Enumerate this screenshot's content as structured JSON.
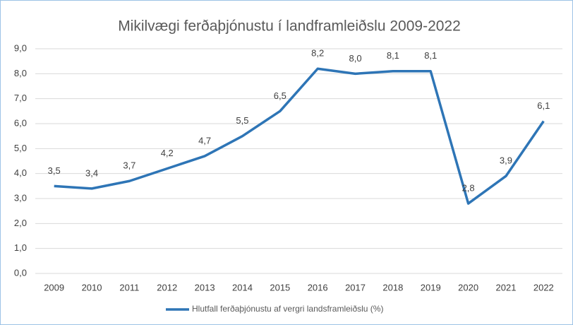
{
  "chart_data": {
    "type": "line",
    "title": "Mikilvægi ferðaþjónustu í landframleiðslu 2009-2022",
    "categories": [
      "2009",
      "2010",
      "2011",
      "2012",
      "2013",
      "2014",
      "2015",
      "2016",
      "2017",
      "2018",
      "2019",
      "2020",
      "2021",
      "2022"
    ],
    "series": [
      {
        "name": "Hlutfall ferðaþjónustu af vergri landsframleiðslu (%)",
        "color": "#2e75b6",
        "values": [
          3.5,
          3.4,
          3.7,
          4.2,
          4.7,
          5.5,
          6.5,
          8.2,
          8.0,
          8.1,
          8.1,
          2.8,
          3.9,
          6.1
        ],
        "value_labels": [
          "3,5",
          "3,4",
          "3,7",
          "4,2",
          "4,7",
          "5,5",
          "6,5",
          "8,2",
          "8,0",
          "8,1",
          "8,1",
          "2,8",
          "3,9",
          "6,1"
        ]
      }
    ],
    "ylim": [
      0,
      9
    ],
    "yticks": [
      {
        "value": 0,
        "label": "0,0"
      },
      {
        "value": 1,
        "label": "1,0"
      },
      {
        "value": 2,
        "label": "2,0"
      },
      {
        "value": 3,
        "label": "3,0"
      },
      {
        "value": 4,
        "label": "4,0"
      },
      {
        "value": 5,
        "label": "5,0"
      },
      {
        "value": 6,
        "label": "6,0"
      },
      {
        "value": 7,
        "label": "7,0"
      },
      {
        "value": 8,
        "label": "8,0"
      },
      {
        "value": 9,
        "label": "9,0"
      }
    ],
    "grid": true,
    "legend": "bottom"
  }
}
